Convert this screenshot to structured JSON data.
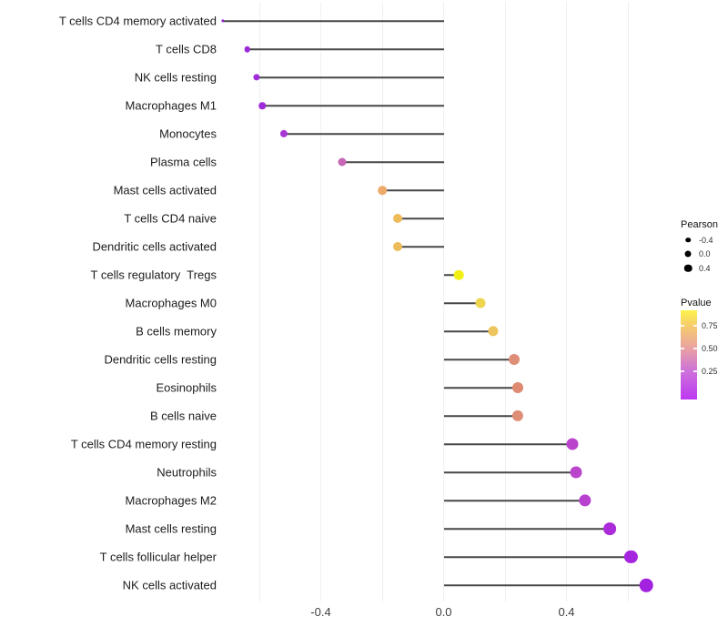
{
  "figure": {
    "background": "#ffffff"
  },
  "chart_data": {
    "type": "lollipop",
    "title": "",
    "xlabel": "",
    "ylabel": "",
    "x_axis": {
      "range": [
        -0.79,
        0.72
      ],
      "ticks": [
        -0.4,
        0.0,
        0.4
      ],
      "tick_labels": [
        "-0.4",
        "0.0",
        "0.4"
      ],
      "gridlines": [
        -0.6,
        -0.4,
        -0.2,
        0.0,
        0.2,
        0.4,
        0.6
      ],
      "gridline_color": "#f0eff2"
    },
    "stem_color": "#474747",
    "rows": [
      {
        "label": "T cells CD4 memory activated",
        "pearson": -0.72,
        "dot_color": "#9122cf",
        "dot_diameter": 3.2
      },
      {
        "label": "T cells CD8",
        "pearson": -0.64,
        "dot_color": "#9d2ad7",
        "dot_diameter": 6.6
      },
      {
        "label": "NK cells resting",
        "pearson": -0.61,
        "dot_color": "#9f2cd8",
        "dot_diameter": 7.2
      },
      {
        "label": "Macrophages M1",
        "pearson": -0.59,
        "dot_color": "#9f2cd8",
        "dot_diameter": 7.5
      },
      {
        "label": "Monocytes",
        "pearson": -0.52,
        "dot_color": "#a837d6",
        "dot_diameter": 8.2
      },
      {
        "label": "Plasma cells",
        "pearson": -0.33,
        "dot_color": "#c765b7",
        "dot_diameter": 9.0
      },
      {
        "label": "Mast cells activated",
        "pearson": -0.2,
        "dot_color": "#edaa6a",
        "dot_diameter": 9.6
      },
      {
        "label": "T cells CD4 naive",
        "pearson": -0.15,
        "dot_color": "#edbc59",
        "dot_diameter": 10.0
      },
      {
        "label": "Dendritic cells activated",
        "pearson": -0.15,
        "dot_color": "#edbc59",
        "dot_diameter": 10.0
      },
      {
        "label": "T cells regulatory  Tregs",
        "pearson": 0.05,
        "dot_color": "#f2f013",
        "dot_diameter": 10.6
      },
      {
        "label": "Macrophages M0",
        "pearson": 0.12,
        "dot_color": "#efd44d",
        "dot_diameter": 11.0
      },
      {
        "label": "B cells memory",
        "pearson": 0.16,
        "dot_color": "#edc45e",
        "dot_diameter": 11.2
      },
      {
        "label": "Dendritic cells resting",
        "pearson": 0.23,
        "dot_color": "#de8d76",
        "dot_diameter": 12.0
      },
      {
        "label": "Eosinophils",
        "pearson": 0.24,
        "dot_color": "#de8a72",
        "dot_diameter": 12.0
      },
      {
        "label": "B cells naive",
        "pearson": 0.24,
        "dot_color": "#de8d76",
        "dot_diameter": 12.2
      },
      {
        "label": "T cells CD4 memory resting",
        "pearson": 0.42,
        "dot_color": "#bb44cd",
        "dot_diameter": 13.0
      },
      {
        "label": "Neutrophils",
        "pearson": 0.43,
        "dot_color": "#bb44cd",
        "dot_diameter": 13.0
      },
      {
        "label": "Macrophages M2",
        "pearson": 0.46,
        "dot_color": "#b941cf",
        "dot_diameter": 13.3
      },
      {
        "label": "Mast cells resting",
        "pearson": 0.54,
        "dot_color": "#ab2cd8",
        "dot_diameter": 13.8
      },
      {
        "label": "T cells follicular helper",
        "pearson": 0.61,
        "dot_color": "#a524dd",
        "dot_diameter": 14.2
      },
      {
        "label": "NK cells activated",
        "pearson": 0.66,
        "dot_color": "#a322e0",
        "dot_diameter": 14.6
      }
    ],
    "legend_pearson": {
      "title": "Pearson",
      "dot_color": "#000000",
      "entries": [
        {
          "label": "-0.4",
          "diameter": 5.5
        },
        {
          "label": "0.0",
          "diameter": 7.0
        },
        {
          "label": "0.4",
          "diameter": 8.5
        }
      ]
    },
    "legend_pvalue": {
      "title": "Pvalue",
      "tick_labels": [
        "0.75",
        "0.50",
        "0.25"
      ],
      "gradient": [
        "#fcf24b",
        "#f7cd6c",
        "#e9a1a3",
        "#cd72da",
        "#bd38f2"
      ]
    }
  }
}
